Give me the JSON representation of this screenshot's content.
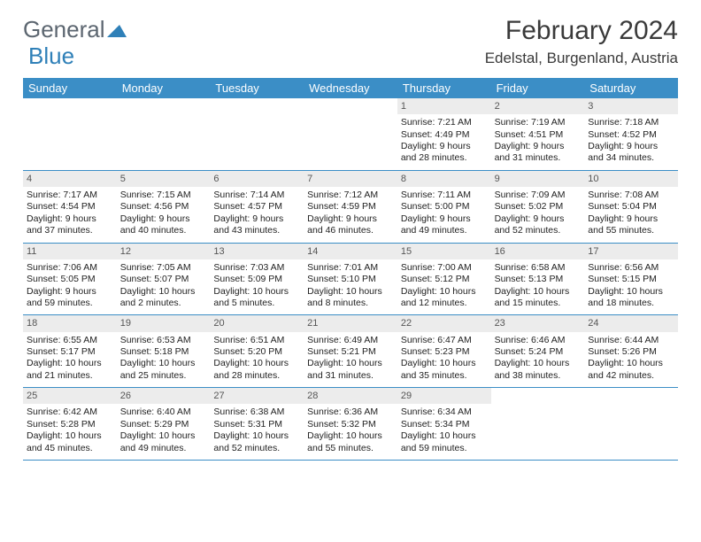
{
  "logo": {
    "part1": "General",
    "part2": "Blue"
  },
  "title": "February 2024",
  "location": "Edelstal, Burgenland, Austria",
  "colors": {
    "accent": "#3b8ec6",
    "text": "#222222",
    "headerText": "#5c6670",
    "dayNumBg": "#ececec"
  },
  "dayNames": [
    "Sunday",
    "Monday",
    "Tuesday",
    "Wednesday",
    "Thursday",
    "Friday",
    "Saturday"
  ],
  "startOffset": 4,
  "daysInMonth": 29,
  "days": [
    {
      "n": 1,
      "sr": "7:21 AM",
      "ss": "4:49 PM",
      "dl": "9 hours and 28 minutes."
    },
    {
      "n": 2,
      "sr": "7:19 AM",
      "ss": "4:51 PM",
      "dl": "9 hours and 31 minutes."
    },
    {
      "n": 3,
      "sr": "7:18 AM",
      "ss": "4:52 PM",
      "dl": "9 hours and 34 minutes."
    },
    {
      "n": 4,
      "sr": "7:17 AM",
      "ss": "4:54 PM",
      "dl": "9 hours and 37 minutes."
    },
    {
      "n": 5,
      "sr": "7:15 AM",
      "ss": "4:56 PM",
      "dl": "9 hours and 40 minutes."
    },
    {
      "n": 6,
      "sr": "7:14 AM",
      "ss": "4:57 PM",
      "dl": "9 hours and 43 minutes."
    },
    {
      "n": 7,
      "sr": "7:12 AM",
      "ss": "4:59 PM",
      "dl": "9 hours and 46 minutes."
    },
    {
      "n": 8,
      "sr": "7:11 AM",
      "ss": "5:00 PM",
      "dl": "9 hours and 49 minutes."
    },
    {
      "n": 9,
      "sr": "7:09 AM",
      "ss": "5:02 PM",
      "dl": "9 hours and 52 minutes."
    },
    {
      "n": 10,
      "sr": "7:08 AM",
      "ss": "5:04 PM",
      "dl": "9 hours and 55 minutes."
    },
    {
      "n": 11,
      "sr": "7:06 AM",
      "ss": "5:05 PM",
      "dl": "9 hours and 59 minutes."
    },
    {
      "n": 12,
      "sr": "7:05 AM",
      "ss": "5:07 PM",
      "dl": "10 hours and 2 minutes."
    },
    {
      "n": 13,
      "sr": "7:03 AM",
      "ss": "5:09 PM",
      "dl": "10 hours and 5 minutes."
    },
    {
      "n": 14,
      "sr": "7:01 AM",
      "ss": "5:10 PM",
      "dl": "10 hours and 8 minutes."
    },
    {
      "n": 15,
      "sr": "7:00 AM",
      "ss": "5:12 PM",
      "dl": "10 hours and 12 minutes."
    },
    {
      "n": 16,
      "sr": "6:58 AM",
      "ss": "5:13 PM",
      "dl": "10 hours and 15 minutes."
    },
    {
      "n": 17,
      "sr": "6:56 AM",
      "ss": "5:15 PM",
      "dl": "10 hours and 18 minutes."
    },
    {
      "n": 18,
      "sr": "6:55 AM",
      "ss": "5:17 PM",
      "dl": "10 hours and 21 minutes."
    },
    {
      "n": 19,
      "sr": "6:53 AM",
      "ss": "5:18 PM",
      "dl": "10 hours and 25 minutes."
    },
    {
      "n": 20,
      "sr": "6:51 AM",
      "ss": "5:20 PM",
      "dl": "10 hours and 28 minutes."
    },
    {
      "n": 21,
      "sr": "6:49 AM",
      "ss": "5:21 PM",
      "dl": "10 hours and 31 minutes."
    },
    {
      "n": 22,
      "sr": "6:47 AM",
      "ss": "5:23 PM",
      "dl": "10 hours and 35 minutes."
    },
    {
      "n": 23,
      "sr": "6:46 AM",
      "ss": "5:24 PM",
      "dl": "10 hours and 38 minutes."
    },
    {
      "n": 24,
      "sr": "6:44 AM",
      "ss": "5:26 PM",
      "dl": "10 hours and 42 minutes."
    },
    {
      "n": 25,
      "sr": "6:42 AM",
      "ss": "5:28 PM",
      "dl": "10 hours and 45 minutes."
    },
    {
      "n": 26,
      "sr": "6:40 AM",
      "ss": "5:29 PM",
      "dl": "10 hours and 49 minutes."
    },
    {
      "n": 27,
      "sr": "6:38 AM",
      "ss": "5:31 PM",
      "dl": "10 hours and 52 minutes."
    },
    {
      "n": 28,
      "sr": "6:36 AM",
      "ss": "5:32 PM",
      "dl": "10 hours and 55 minutes."
    },
    {
      "n": 29,
      "sr": "6:34 AM",
      "ss": "5:34 PM",
      "dl": "10 hours and 59 minutes."
    }
  ],
  "labels": {
    "sunrise": "Sunrise:",
    "sunset": "Sunset:",
    "daylight": "Daylight:"
  }
}
